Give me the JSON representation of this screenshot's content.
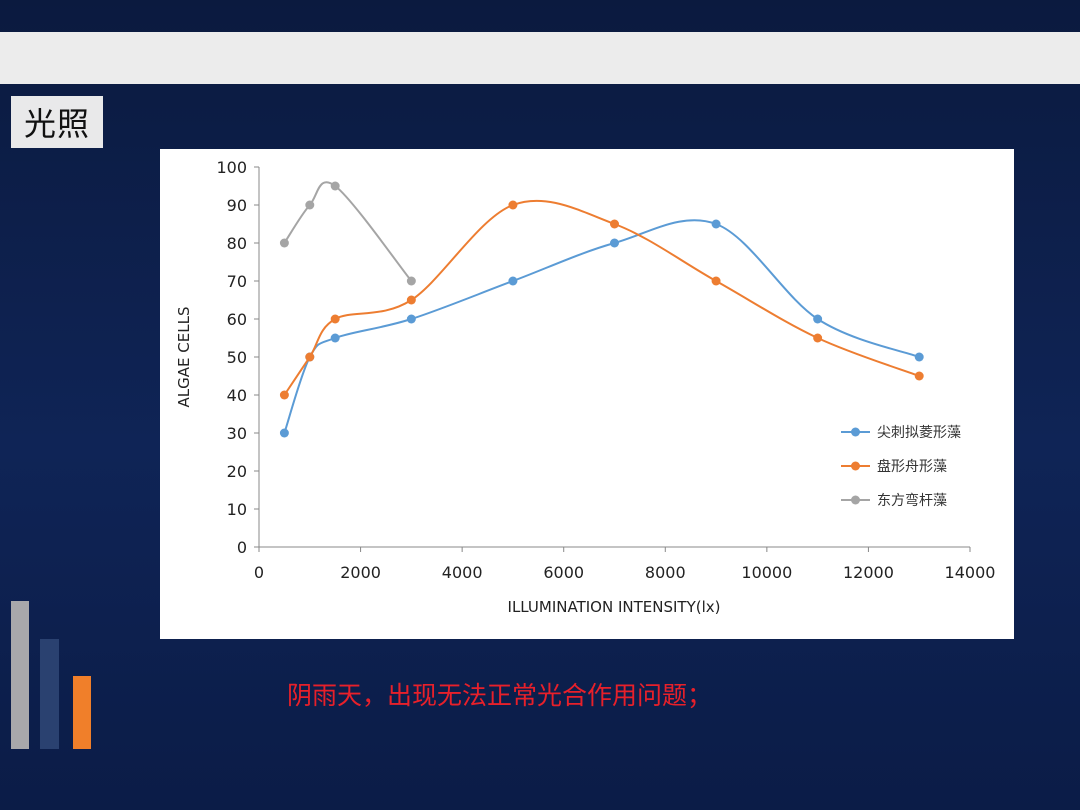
{
  "slide": {
    "title": "光照",
    "caption": "阴雨天，出现无法正常光合作用问题；"
  },
  "chart_data": {
    "type": "line",
    "title": "",
    "xlabel": "ILLUMINATION INTENSITY(lx)",
    "ylabel": "ALGAE CELLS",
    "xlim": [
      0,
      14000
    ],
    "ylim": [
      0,
      100
    ],
    "x_ticks": [
      0,
      2000,
      4000,
      6000,
      8000,
      10000,
      12000,
      14000
    ],
    "y_ticks": [
      0,
      10,
      20,
      30,
      40,
      50,
      60,
      70,
      80,
      90,
      100
    ],
    "grid": false,
    "legend_position": "right",
    "series": [
      {
        "name": "尖刺拟菱形藻",
        "color": "#5b9bd5",
        "x": [
          500,
          1000,
          1500,
          3000,
          5000,
          7000,
          9000,
          11000,
          13000
        ],
        "y": [
          30,
          50,
          55,
          60,
          70,
          80,
          85,
          60,
          50
        ]
      },
      {
        "name": "盘形舟形藻",
        "color": "#ed7d31",
        "x": [
          500,
          1000,
          1500,
          3000,
          5000,
          7000,
          9000,
          11000,
          13000
        ],
        "y": [
          40,
          50,
          60,
          65,
          90,
          85,
          70,
          55,
          45
        ]
      },
      {
        "name": "东方弯杆藻",
        "color": "#a5a5a5",
        "x": [
          500,
          1000,
          1500,
          3000
        ],
        "y": [
          80,
          90,
          95,
          70
        ]
      }
    ]
  }
}
